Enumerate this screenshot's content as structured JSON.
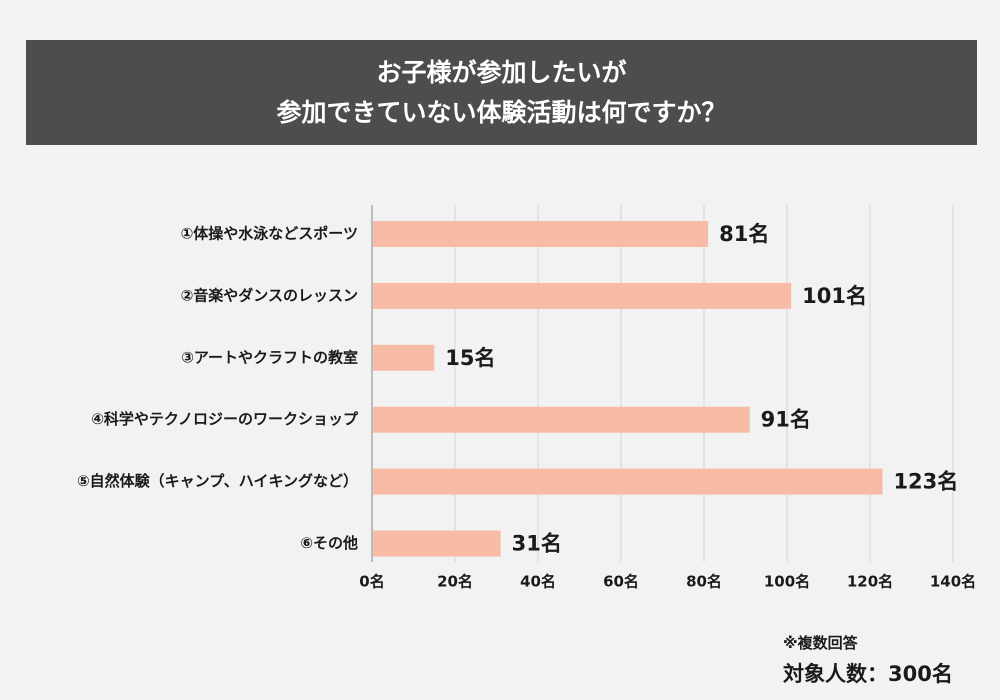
{
  "title": {
    "line1": "お子様が参加したいが",
    "line2": "参加できていない体験活動は何ですか？"
  },
  "chart_data": {
    "type": "bar",
    "orientation": "horizontal",
    "categories": [
      "①体操や水泳などスポーツ",
      "②音楽やダンスのレッスン",
      "③アートやクラフトの教室",
      "④科学やテクノロジーのワークショップ",
      "⑤自然体験（キャンプ、ハイキングなど）",
      "⑥その他"
    ],
    "values": [
      81,
      101,
      15,
      91,
      123,
      31
    ],
    "value_labels": [
      "81名",
      "101名",
      "15名",
      "91名",
      "123名",
      "31名"
    ],
    "xlim": [
      0,
      140
    ],
    "xticks": [
      0,
      20,
      40,
      60,
      80,
      100,
      120,
      140
    ],
    "xtick_labels": [
      "0名",
      "20名",
      "40名",
      "60名",
      "80名",
      "100名",
      "120名",
      "140名"
    ],
    "grid": "vertical",
    "bar_color": "#f8bba6",
    "grid_color": "#d4d4d4",
    "axis_color": "#9a9a9a"
  },
  "notes": {
    "multiple_answers": "※複数回答",
    "respondents": "対象人数：300名"
  }
}
